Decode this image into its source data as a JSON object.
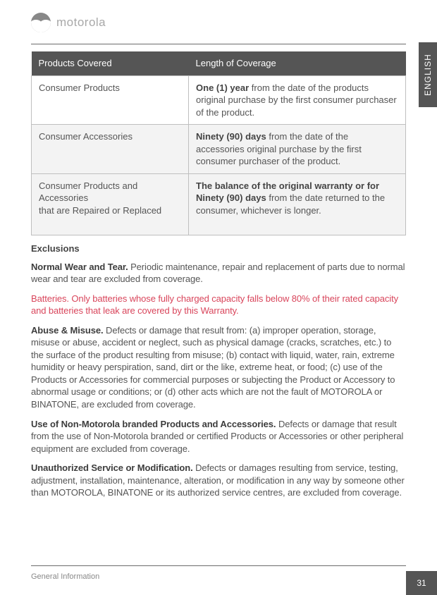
{
  "brand": {
    "wordmark": "motorola"
  },
  "sideTab": {
    "label": "ENGLISH"
  },
  "table": {
    "headers": {
      "c1": "Products Covered",
      "c2": "Length of Coverage"
    },
    "rows": [
      {
        "c1": "Consumer Products",
        "c2_bold": "One (1) year",
        "c2_rest": " from the date of the products original purchase by the first consumer purchaser of the product."
      },
      {
        "c1": "Consumer Accessories",
        "c2_bold": "Ninety (90) days",
        "c2_rest": " from the date of the accessories original purchase by the first consumer purchaser of the product."
      },
      {
        "c1a": "Consumer Products and Accessories",
        "c1b": "that are Repaired or Replaced",
        "c2_bold": "The balance of the original warranty or for Ninety (90) days",
        "c2_rest": " from the date returned to the consumer, whichever is longer."
      }
    ]
  },
  "exclusions": {
    "heading": "Exclusions",
    "normalWear": {
      "title": "Normal Wear and Tear.",
      "body": " Periodic maintenance, repair and replacement of parts due to normal wear and tear are excluded from coverage."
    },
    "batteries": "Batteries. Only batteries whose fully charged capacity falls below 80% of their rated capacity and batteries that leak are covered by this Warranty.",
    "abuse": {
      "title": "Abuse & Misuse.",
      "body": " Defects or damage that result from: (a) improper operation, storage, misuse or abuse, accident or neglect, such as physical damage (cracks,  scratches, etc.) to the surface of the product resulting from misuse; (b) contact   with liquid, water, rain, extreme humidity or heavy perspiration, sand, dirt or the  like, extreme heat, or food; (c) use of the Products or Accessories for  commercial purposes or subjecting the Product or Accessory to abnormal usage or conditions; or (d) other acts which are not the fault of MOTOROLA or BINATONE, are excluded from coverage."
    },
    "nonMoto": {
      "title": "Use of Non-Motorola branded Products and Accessories.",
      "body": " Defects or damage that result from the use of Non-Motorola branded or certified Products or Accessories or other peripheral equipment are excluded from coverage."
    },
    "unauth": {
      "title": "Unauthorized Service or Modification.",
      "body": " Defects or damages resulting from   service, testing, adjustment, installation, maintenance, alteration, or modification in any way by someone other than MOTOROLA, BINATONE or its authorized service centres, are excluded from coverage."
    }
  },
  "footer": {
    "section": "General Information",
    "page": "31"
  }
}
